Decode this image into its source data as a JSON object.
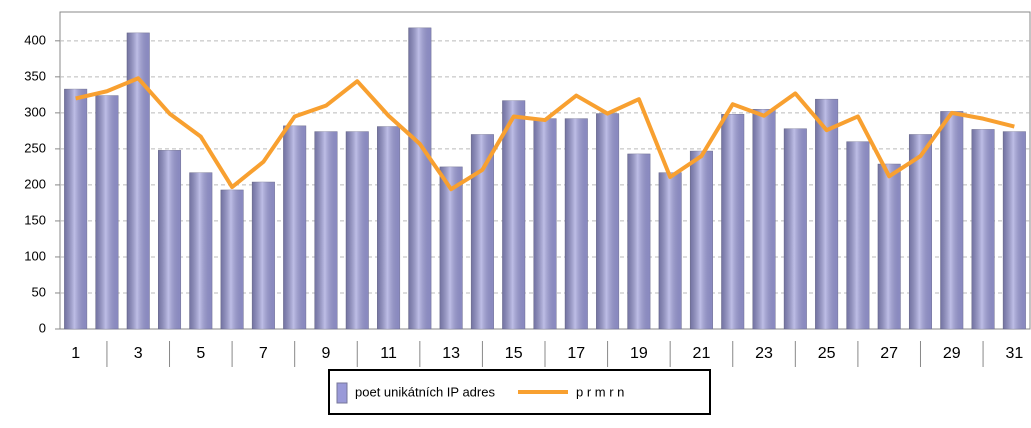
{
  "chart_data": {
    "type": "bar",
    "categories": [
      "1",
      null,
      "3",
      null,
      "5",
      null,
      "7",
      null,
      "9",
      null,
      "11",
      null,
      "13",
      null,
      "15",
      null,
      "17",
      null,
      "19",
      null,
      "21",
      null,
      "23",
      null,
      "25",
      null,
      "27",
      null,
      "29",
      null,
      "31"
    ],
    "series": [
      {
        "name": "poet unikátních IP adres",
        "type": "bar",
        "color": "#9a9ad8",
        "values": [
          333,
          324,
          411,
          248,
          217,
          193,
          204,
          282,
          274,
          274,
          281,
          418,
          225,
          270,
          317,
          292,
          292,
          299,
          243,
          217,
          247,
          298,
          305,
          278,
          319,
          260,
          229,
          270,
          302,
          277,
          274
        ]
      },
      {
        "name": "p r m r n",
        "type": "line",
        "color": "#f8a030",
        "values": [
          320,
          330,
          348,
          299,
          267,
          197,
          232,
          295,
          310,
          344,
          296,
          257,
          194,
          221,
          295,
          290,
          324,
          299,
          319,
          211,
          240,
          312,
          296,
          327,
          276,
          295,
          212,
          240,
          300,
          292,
          281
        ]
      }
    ],
    "ylim": [
      0,
      440
    ],
    "yticks": [
      0,
      50,
      100,
      150,
      200,
      250,
      300,
      350,
      400
    ],
    "grid": true,
    "legend": "bottom"
  }
}
